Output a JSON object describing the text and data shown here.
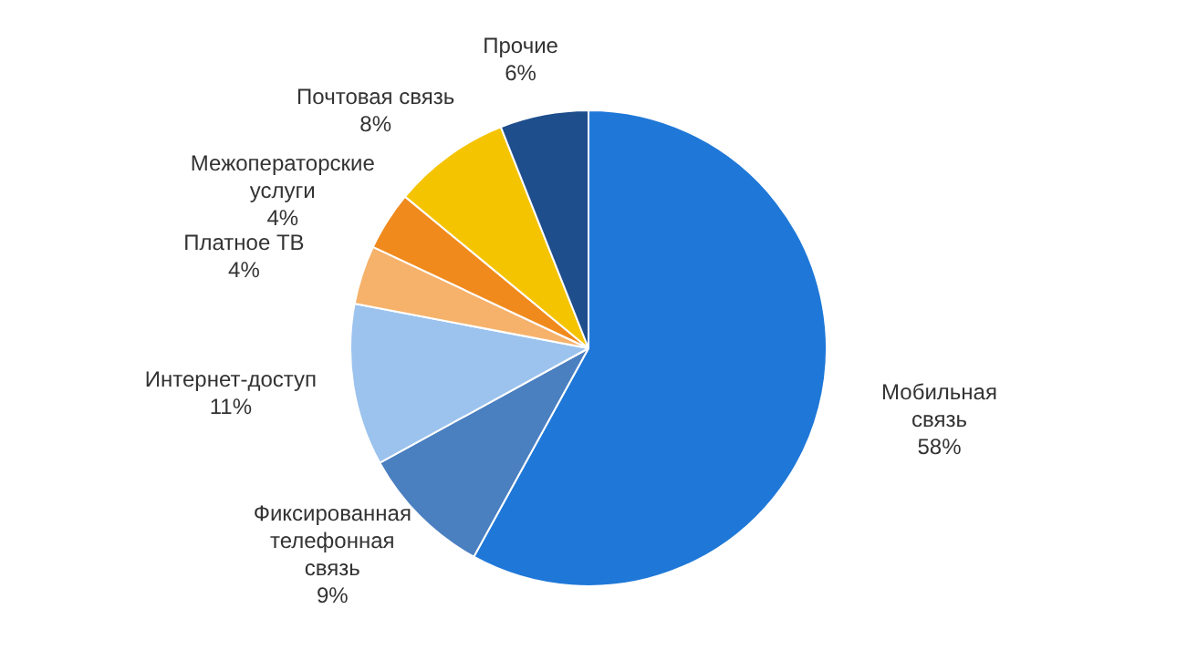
{
  "chart_data": {
    "type": "pie",
    "categories": [
      "Мобильная связь",
      "Фиксированная телефонная связь",
      "Интернет-доступ",
      "Платное ТВ",
      "Межоператорские услуги",
      "Почтовая связь",
      "Прочие"
    ],
    "values": [
      58,
      9,
      11,
      4,
      4,
      8,
      6
    ],
    "colors": [
      "#1f78d8",
      "#4a7fc0",
      "#9cc3ee",
      "#f6b26b",
      "#f08a1c",
      "#f5c400",
      "#1f4e8c"
    ],
    "value_labels": [
      "58%",
      "9%",
      "11%",
      "4%",
      "4%",
      "8%",
      "6%"
    ]
  }
}
